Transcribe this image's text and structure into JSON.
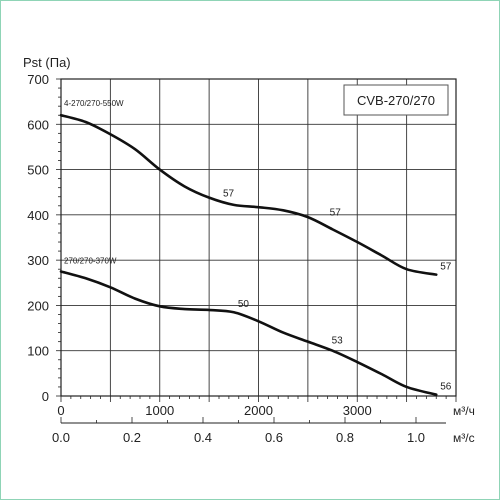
{
  "chart_data": {
    "type": "line",
    "title": "CVB-270/270",
    "ylabel": "Pst (Па)",
    "xlabel": "м³/ч",
    "xlabel_secondary": "м³/с",
    "x_ticks": [
      "0",
      "1000",
      "2000",
      "3000"
    ],
    "x_ticks_secondary": [
      "0.0",
      "0.2",
      "0.4",
      "0.6",
      "0.8",
      "1.0"
    ],
    "y_ticks": [
      "0",
      "100",
      "200",
      "300",
      "400",
      "500",
      "600",
      "700"
    ],
    "xlim": [
      0,
      4000
    ],
    "ylim": [
      0,
      700
    ],
    "grid": true,
    "series": [
      {
        "name": "4-270/270-550W",
        "x": [
          0,
          250,
          500,
          750,
          1000,
          1250,
          1500,
          1750,
          2000,
          2250,
          2500,
          2750,
          3000,
          3250,
          3500,
          3800
        ],
        "y": [
          620,
          605,
          578,
          545,
          500,
          463,
          438,
          422,
          417,
          410,
          395,
          368,
          340,
          310,
          280,
          268
        ],
        "point_labels": [
          {
            "x": 1600,
            "y": 430,
            "text": "57"
          },
          {
            "x": 2680,
            "y": 388,
            "text": "57"
          },
          {
            "x": 3800,
            "y": 268,
            "text": "57"
          }
        ]
      },
      {
        "name": "270/270-370W",
        "x": [
          0,
          250,
          500,
          750,
          1000,
          1250,
          1500,
          1750,
          2000,
          2250,
          2500,
          2750,
          3000,
          3250,
          3500,
          3800
        ],
        "y": [
          275,
          260,
          240,
          215,
          198,
          192,
          190,
          185,
          165,
          140,
          120,
          100,
          75,
          48,
          20,
          3
        ],
        "point_labels": [
          {
            "x": 1750,
            "y": 185,
            "text": "50"
          },
          {
            "x": 2700,
            "y": 105,
            "text": "53"
          },
          {
            "x": 3800,
            "y": 3,
            "text": "56"
          }
        ]
      }
    ]
  }
}
